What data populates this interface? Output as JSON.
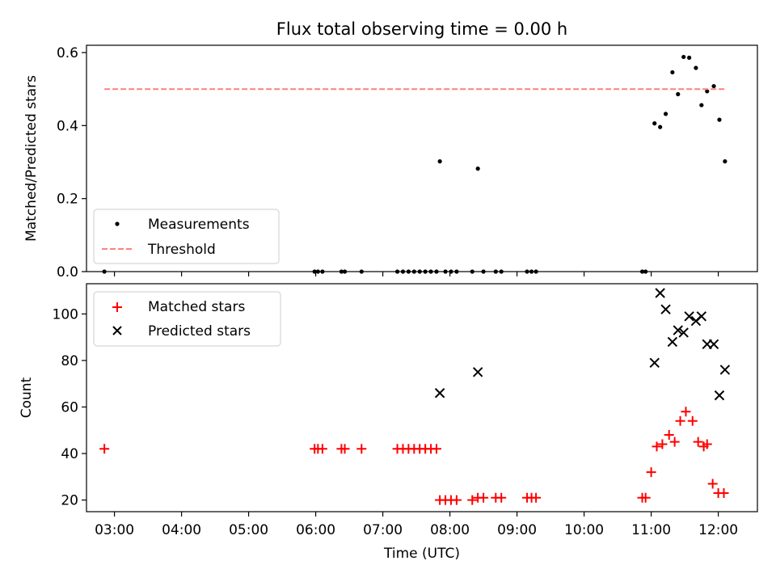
{
  "chart_data": [
    {
      "type": "scatter",
      "title": "Flux total observing time = 0.00 h",
      "xlabel": "",
      "ylabel": "Matched/Predicted stars",
      "xlim": [
        "02:35",
        "12:35"
      ],
      "ylim": [
        0,
        0.62
      ],
      "x_ticks": [
        "03:00",
        "04:00",
        "05:00",
        "06:00",
        "07:00",
        "08:00",
        "09:00",
        "10:00",
        "11:00",
        "12:00"
      ],
      "y_ticks": [
        0,
        0.2,
        0.4,
        0.6
      ],
      "y_tick_labels": [
        "0.0",
        "0.2",
        "0.4",
        "0.6"
      ],
      "tick_labels_x_shown": false,
      "legend": {
        "placement": "lower-left",
        "entries": [
          "Measurements",
          "Threshold"
        ]
      },
      "series": [
        {
          "name": "Measurements",
          "marker": "dot",
          "color": "#000000",
          "x": [
            "02:51",
            "05:59",
            "06:02",
            "06:06",
            "06:23",
            "06:26",
            "06:41",
            "07:13",
            "07:18",
            "07:23",
            "07:28",
            "07:33",
            "07:38",
            "07:43",
            "07:48",
            "07:51",
            "07:56",
            "08:01",
            "08:06",
            "08:20",
            "08:25",
            "08:30",
            "08:41",
            "08:46",
            "09:09",
            "09:13",
            "09:17",
            "10:52",
            "10:55",
            "11:03",
            "11:08",
            "11:13",
            "11:19",
            "11:24",
            "11:29",
            "11:34",
            "11:40",
            "11:45",
            "11:50",
            "11:56",
            "12:01",
            "12:06"
          ],
          "y": [
            0,
            0,
            0,
            0,
            0,
            0,
            0,
            0,
            0,
            0,
            0,
            0,
            0,
            0,
            0,
            0.302,
            0,
            0,
            0,
            0,
            0.282,
            0,
            0,
            0,
            0,
            0,
            0,
            0,
            0,
            0.406,
            0.396,
            0.432,
            0.546,
            0.486,
            0.588,
            0.586,
            0.558,
            0.456,
            0.494,
            0.508,
            0.416,
            0.302
          ]
        },
        {
          "name": "Threshold",
          "marker": "dashed-line",
          "color": "#ff7f7f",
          "x": [
            "02:51",
            "12:06"
          ],
          "y": [
            0.5,
            0.5
          ]
        }
      ]
    },
    {
      "type": "scatter",
      "title": "",
      "xlabel": "Time (UTC)",
      "ylabel": "Count",
      "xlim": [
        "02:35",
        "12:35"
      ],
      "ylim": [
        15,
        113
      ],
      "x_ticks": [
        "03:00",
        "04:00",
        "05:00",
        "06:00",
        "07:00",
        "08:00",
        "09:00",
        "10:00",
        "11:00",
        "12:00"
      ],
      "y_ticks": [
        20,
        40,
        60,
        80,
        100
      ],
      "y_tick_labels": [
        "20",
        "40",
        "60",
        "80",
        "100"
      ],
      "legend": {
        "placement": "upper-left",
        "entries": [
          "Matched stars",
          "Predicted stars"
        ]
      },
      "series": [
        {
          "name": "Matched stars",
          "marker": "plus",
          "color": "#ff0000",
          "x": [
            "02:51",
            "05:59",
            "06:02",
            "06:06",
            "06:23",
            "06:26",
            "06:41",
            "07:13",
            "07:18",
            "07:23",
            "07:28",
            "07:33",
            "07:38",
            "07:43",
            "07:48",
            "07:51",
            "07:56",
            "08:01",
            "08:06",
            "08:20",
            "08:25",
            "08:30",
            "08:41",
            "08:46",
            "09:09",
            "09:13",
            "09:17",
            "10:52",
            "10:55",
            "11:00",
            "11:05",
            "11:10",
            "11:16",
            "11:21",
            "11:26",
            "11:31",
            "11:37",
            "11:42",
            "11:47",
            "11:50",
            "11:55",
            "12:00",
            "12:05"
          ],
          "y": [
            42,
            42,
            42,
            42,
            42,
            42,
            42,
            42,
            42,
            42,
            42,
            42,
            42,
            42,
            42,
            20,
            20,
            20,
            20,
            20,
            21,
            21,
            21,
            21,
            21,
            21,
            21,
            21,
            21,
            32,
            43,
            44,
            48,
            45,
            54,
            58,
            54,
            45,
            43,
            44,
            27,
            23,
            23
          ]
        },
        {
          "name": "Predicted stars",
          "marker": "x",
          "color": "#000000",
          "x": [
            "07:51",
            "08:25",
            "11:03",
            "11:08",
            "11:13",
            "11:19",
            "11:24",
            "11:29",
            "11:34",
            "11:40",
            "11:45",
            "11:50",
            "11:56",
            "12:01",
            "12:06"
          ],
          "y": [
            66,
            75,
            79,
            109,
            102,
            88,
            93,
            92,
            99,
            97,
            99,
            87,
            87,
            65,
            76
          ]
        }
      ]
    }
  ]
}
